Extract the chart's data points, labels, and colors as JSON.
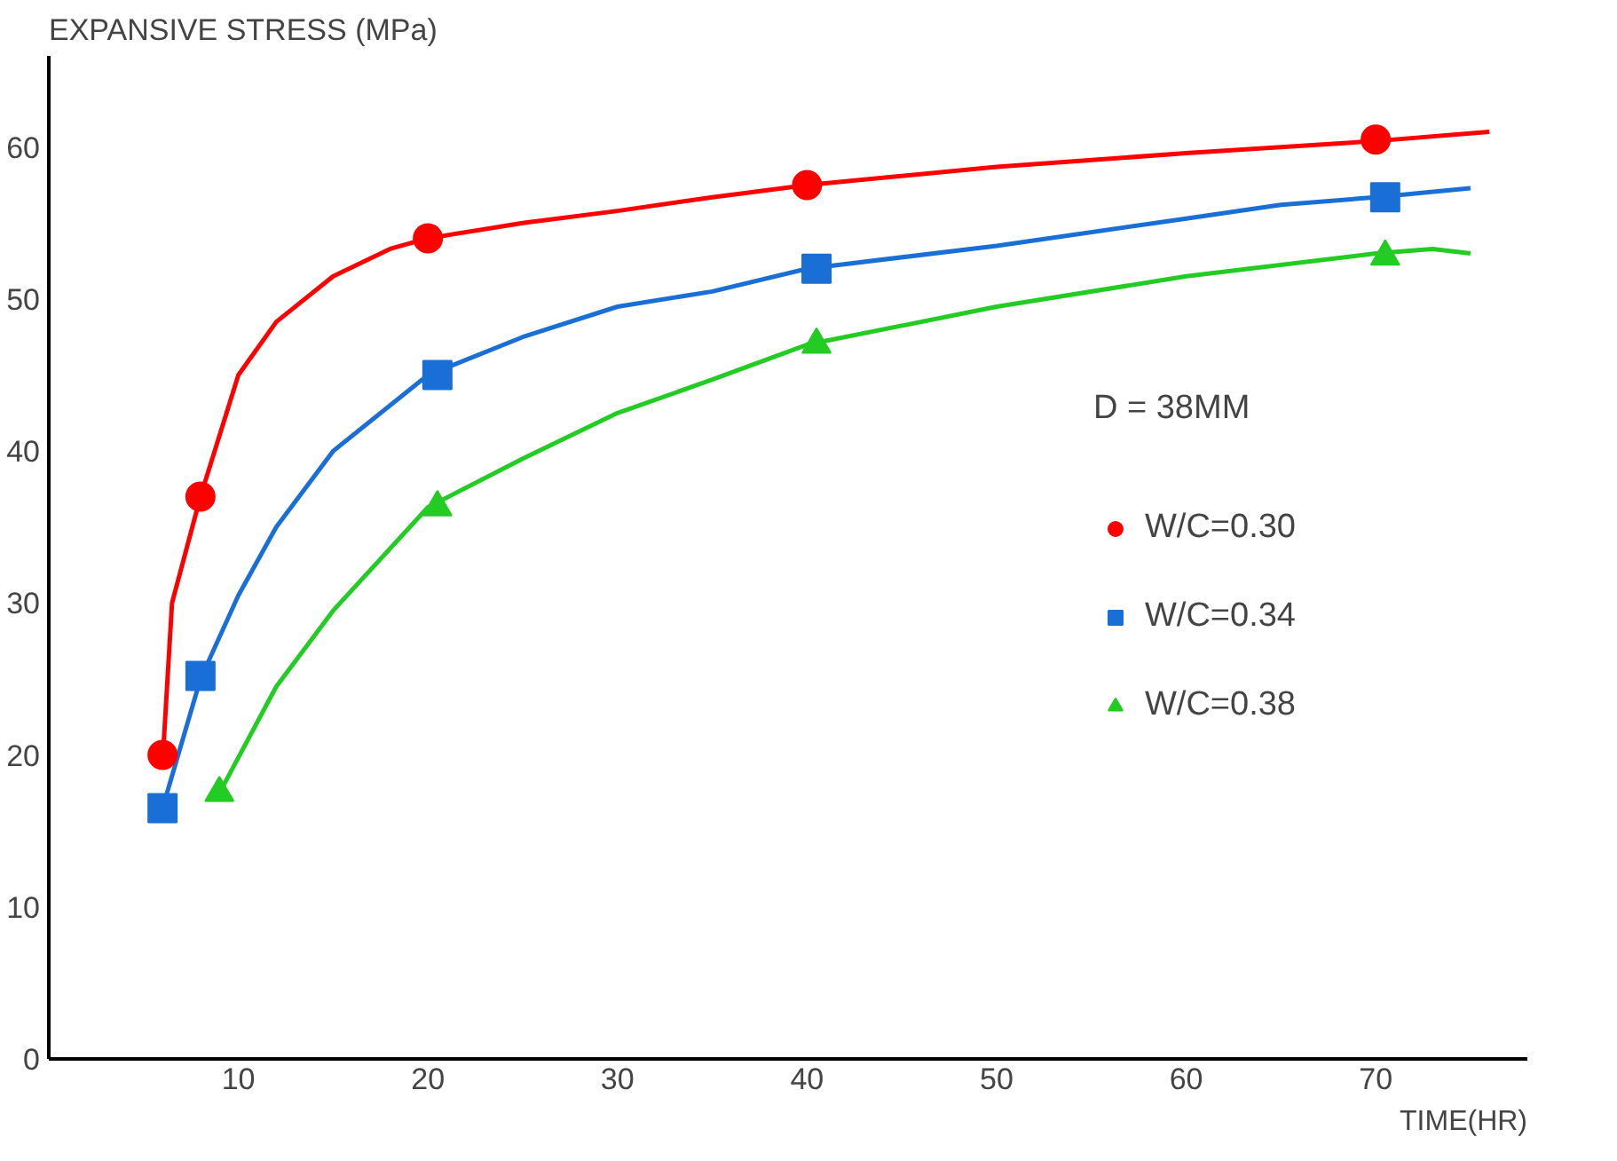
{
  "chart_data": {
    "type": "line",
    "xlabel": "TIME(HR)",
    "ylabel": "EXPANSIVE STRESS (MPa)",
    "legend_title": "D = 38MM",
    "legend": "center right",
    "grid": false,
    "marker": "none",
    "line_style": "solid",
    "xlim": [
      0,
      78
    ],
    "ylim": [
      0,
      66
    ],
    "xticks": [
      10,
      20,
      30,
      40,
      50,
      60,
      70
    ],
    "yticks": [
      0,
      10,
      20,
      30,
      40,
      50,
      60
    ],
    "series": [
      {
        "color": "#ff0000",
        "x": [
          6,
          6.5,
          8,
          10,
          12,
          15,
          18,
          20,
          25,
          30,
          35,
          40,
          50,
          60,
          70,
          76
        ],
        "values": [
          19.5,
          30,
          37,
          45,
          48.5,
          51.5,
          53.3,
          54,
          55,
          55.8,
          56.7,
          57.5,
          58.7,
          59.6,
          60.4,
          61
        ]
      },
      {
        "color": "#1a6fd6",
        "x": [
          6,
          8,
          10,
          12,
          15,
          20,
          25,
          30,
          35,
          40,
          50,
          60,
          65,
          70,
          75
        ],
        "values": [
          16.5,
          25,
          30.5,
          35,
          40,
          45,
          47.5,
          49.5,
          50.5,
          52,
          53.5,
          55.3,
          56.2,
          56.7,
          57.3
        ]
      },
      {
        "color": "#22cc22",
        "x": [
          9,
          12,
          15,
          20,
          25,
          30,
          35,
          40,
          50,
          60,
          70,
          73,
          75
        ],
        "values": [
          17.5,
          24.5,
          29.5,
          36.3,
          39.5,
          42.5,
          44.7,
          47,
          49.5,
          51.5,
          53,
          53.3,
          53
        ]
      },
      {
        "type": "scatter",
        "name": "W/C=0.30",
        "color": "#ff0000",
        "marker": "circle",
        "x": [
          6,
          8,
          20,
          40,
          70
        ],
        "values": [
          20,
          37,
          54,
          57.5,
          60.5
        ]
      },
      {
        "type": "scatter",
        "name": "W/C=0.34",
        "color": "#1a6fd6",
        "marker": "square",
        "x": [
          6,
          8,
          20.5,
          40.5,
          70.5
        ],
        "values": [
          16.5,
          25.2,
          45,
          52,
          56.7
        ]
      },
      {
        "type": "scatter",
        "name": "W/C=0.38",
        "color": "#22cc22",
        "marker": "triangle",
        "x": [
          9,
          20.5,
          40.5,
          70.5
        ],
        "values": [
          17.5,
          36.3,
          47,
          52.8
        ]
      }
    ]
  }
}
